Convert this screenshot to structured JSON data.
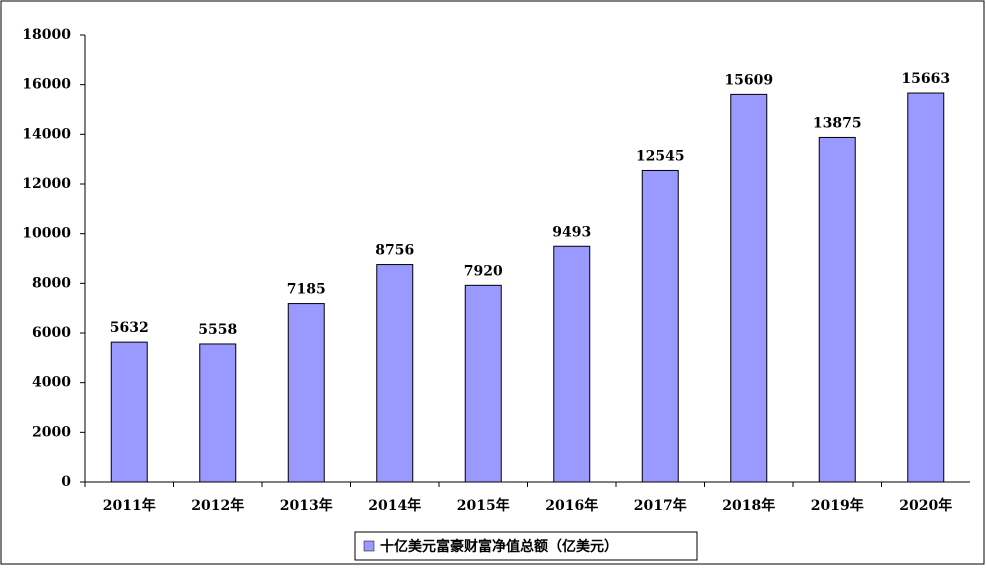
{
  "chart_data": {
    "type": "bar",
    "categories": [
      "2011年",
      "2012年",
      "2013年",
      "2014年",
      "2015年",
      "2016年",
      "2017年",
      "2018年",
      "2019年",
      "2020年"
    ],
    "series": [
      {
        "name": "十亿美元富豪财富净值总额（亿美元）",
        "color": "#9999ff",
        "values": [
          5632,
          5558,
          7185,
          8756,
          7920,
          9493,
          12545,
          15609,
          13875,
          15663
        ]
      }
    ],
    "ylim": [
      0,
      18000
    ],
    "yticks": [
      0,
      2000,
      4000,
      6000,
      8000,
      10000,
      12000,
      14000,
      16000,
      18000
    ],
    "grid": false,
    "legend": "bottom",
    "data_labels": true
  }
}
